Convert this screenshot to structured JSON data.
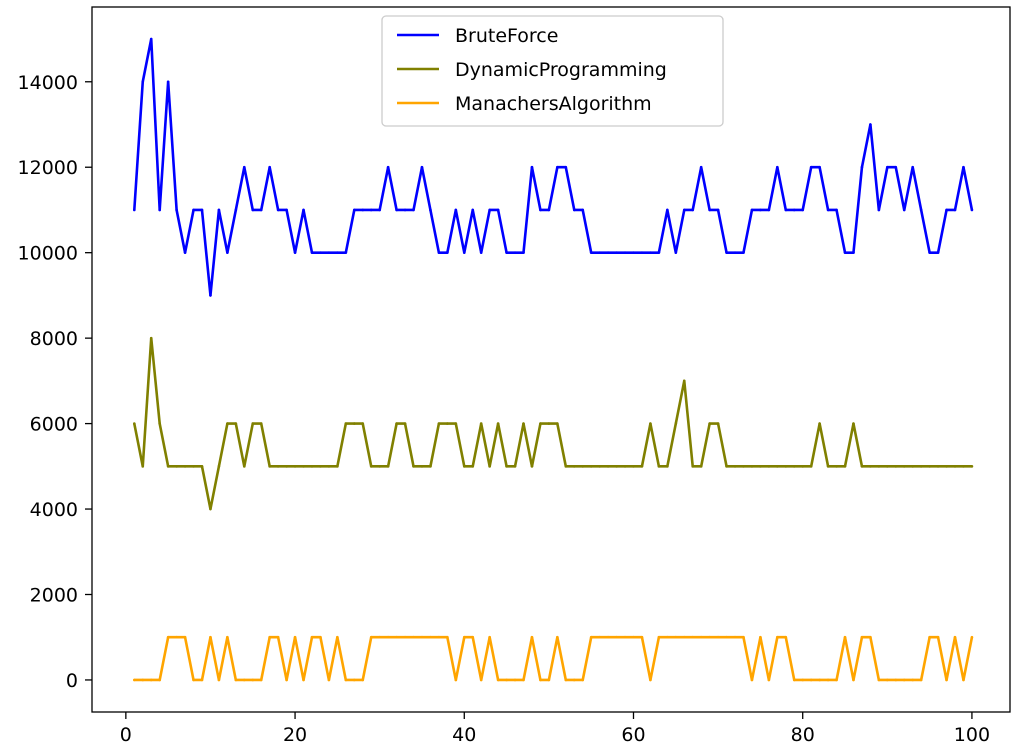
{
  "chart_data": {
    "type": "line",
    "title": "",
    "xlabel": "",
    "ylabel": "",
    "xlim": [
      -4,
      104.5
    ],
    "ylim": [
      -750,
      15750
    ],
    "xticks": [
      0,
      20,
      40,
      60,
      80,
      100
    ],
    "yticks": [
      0,
      2000,
      4000,
      6000,
      8000,
      10000,
      12000,
      14000
    ],
    "xtick_labels": [
      "0",
      "20",
      "40",
      "60",
      "80",
      "100"
    ],
    "ytick_labels": [
      "0",
      "2000",
      "4000",
      "6000",
      "8000",
      "10000",
      "12000",
      "14000"
    ],
    "grid": false,
    "legend_position": "top-center",
    "x": [
      1,
      2,
      3,
      4,
      5,
      6,
      7,
      8,
      9,
      10,
      11,
      12,
      13,
      14,
      15,
      16,
      17,
      18,
      19,
      20,
      21,
      22,
      23,
      24,
      25,
      26,
      27,
      28,
      29,
      30,
      31,
      32,
      33,
      34,
      35,
      36,
      37,
      38,
      39,
      40,
      41,
      42,
      43,
      44,
      45,
      46,
      47,
      48,
      49,
      50,
      51,
      52,
      53,
      54,
      55,
      56,
      57,
      58,
      59,
      60,
      61,
      62,
      63,
      64,
      65,
      66,
      67,
      68,
      69,
      70,
      71,
      72,
      73,
      74,
      75,
      76,
      77,
      78,
      79,
      80,
      81,
      82,
      83,
      84,
      85,
      86,
      87,
      88,
      89,
      90,
      91,
      92,
      93,
      94,
      95,
      96,
      97,
      98,
      99,
      100
    ],
    "series": [
      {
        "name": "BruteForce",
        "color": "#0000ff",
        "values": [
          11000,
          14000,
          15000,
          11000,
          14000,
          11000,
          10000,
          11000,
          11000,
          9000,
          11000,
          10000,
          11000,
          12000,
          11000,
          11000,
          12000,
          11000,
          11000,
          10000,
          11000,
          10000,
          10000,
          10000,
          10000,
          10000,
          11000,
          11000,
          11000,
          11000,
          12000,
          11000,
          11000,
          11000,
          12000,
          11000,
          10000,
          10000,
          11000,
          10000,
          11000,
          10000,
          11000,
          11000,
          10000,
          10000,
          10000,
          12000,
          11000,
          11000,
          12000,
          12000,
          11000,
          11000,
          10000,
          10000,
          10000,
          10000,
          10000,
          10000,
          10000,
          10000,
          10000,
          11000,
          10000,
          11000,
          11000,
          12000,
          11000,
          11000,
          10000,
          10000,
          10000,
          11000,
          11000,
          11000,
          12000,
          11000,
          11000,
          11000,
          12000,
          12000,
          11000,
          11000,
          10000,
          10000,
          12000,
          13000,
          11000,
          12000,
          12000,
          11000,
          12000,
          11000,
          10000,
          10000,
          11000,
          11000,
          12000,
          11000
        ]
      },
      {
        "name": "DynamicProgramming",
        "color": "#808000",
        "values": [
          6000,
          5000,
          8000,
          6000,
          5000,
          5000,
          5000,
          5000,
          5000,
          4000,
          5000,
          6000,
          6000,
          5000,
          6000,
          6000,
          5000,
          5000,
          5000,
          5000,
          5000,
          5000,
          5000,
          5000,
          5000,
          6000,
          6000,
          6000,
          5000,
          5000,
          5000,
          6000,
          6000,
          5000,
          5000,
          5000,
          6000,
          6000,
          6000,
          5000,
          5000,
          6000,
          5000,
          6000,
          5000,
          5000,
          6000,
          5000,
          6000,
          6000,
          6000,
          5000,
          5000,
          5000,
          5000,
          5000,
          5000,
          5000,
          5000,
          5000,
          5000,
          6000,
          5000,
          5000,
          6000,
          7000,
          5000,
          5000,
          6000,
          6000,
          5000,
          5000,
          5000,
          5000,
          5000,
          5000,
          5000,
          5000,
          5000,
          5000,
          5000,
          6000,
          5000,
          5000,
          5000,
          6000,
          5000,
          5000,
          5000,
          5000,
          5000,
          5000,
          5000,
          5000,
          5000,
          5000,
          5000,
          5000,
          5000,
          5000
        ]
      },
      {
        "name": "ManachersAlgorithm",
        "color": "#ffa500",
        "values": [
          0,
          0,
          0,
          0,
          1000,
          1000,
          1000,
          0,
          0,
          1000,
          0,
          1000,
          0,
          0,
          0,
          0,
          1000,
          1000,
          0,
          1000,
          0,
          1000,
          1000,
          0,
          1000,
          0,
          0,
          0,
          1000,
          1000,
          1000,
          1000,
          1000,
          1000,
          1000,
          1000,
          1000,
          1000,
          0,
          1000,
          1000,
          0,
          1000,
          0,
          0,
          0,
          0,
          1000,
          0,
          0,
          1000,
          0,
          0,
          0,
          1000,
          1000,
          1000,
          1000,
          1000,
          1000,
          1000,
          0,
          1000,
          1000,
          1000,
          1000,
          1000,
          1000,
          1000,
          1000,
          1000,
          1000,
          1000,
          0,
          1000,
          0,
          1000,
          1000,
          0,
          0,
          0,
          0,
          0,
          0,
          1000,
          0,
          1000,
          1000,
          0,
          0,
          0,
          0,
          0,
          0,
          1000,
          1000,
          0,
          1000,
          0,
          1000
        ]
      }
    ]
  }
}
